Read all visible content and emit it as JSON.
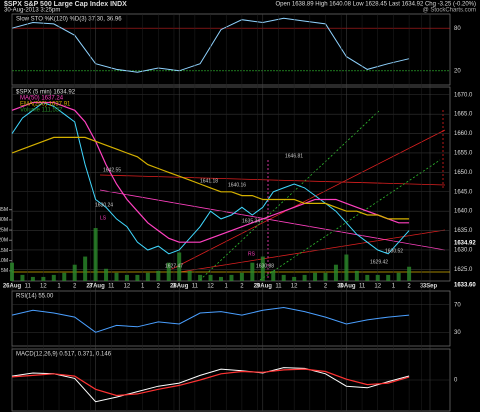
{
  "header": {
    "symbol": "$SPX S&P 500 Large Cap Index INDX",
    "timestamp": "30-Aug-2013 3:25pm",
    "quote": "Open 1638.89 High 1640.08 Low 1628.45 Last 1634.92 Chg -3.25 (-0.20%)",
    "source": "@ StockCharts.com"
  },
  "chart_data": [
    {
      "type": "line",
      "title": "Slow STO %K(120) %D(3) 37.30, 36.96",
      "x": [
        0,
        2,
        4,
        6,
        8,
        10,
        12,
        14,
        16,
        18,
        20,
        22,
        24,
        26,
        28,
        30,
        32,
        34,
        36,
        38
      ],
      "xlim": [
        0,
        40
      ],
      "ylim": [
        0,
        100
      ],
      "yticks": [
        20,
        80
      ],
      "grid": true,
      "series": [
        {
          "name": "%K",
          "color": "#8fd3ff",
          "values": [
            80,
            88,
            86,
            70,
            30,
            22,
            18,
            24,
            20,
            30,
            78,
            92,
            88,
            94,
            90,
            86,
            40,
            22,
            30,
            37
          ]
        }
      ]
    },
    {
      "type": "line",
      "title": "$SPX (5 min) 1634.92",
      "x": [
        0,
        1,
        2,
        3,
        4,
        5,
        6,
        7,
        8,
        9,
        10,
        11,
        12,
        13,
        14,
        15,
        16,
        17,
        18,
        19,
        20,
        21,
        22,
        23,
        24,
        25,
        26,
        27,
        28,
        29,
        30,
        31,
        32,
        33,
        34,
        35,
        36,
        37,
        38
      ],
      "xlim": [
        0,
        40
      ],
      "ylim": [
        1622,
        1672
      ],
      "yticks": [
        {
          "value": 1670,
          "label": "1670.0"
        },
        {
          "value": 1665,
          "label": "1665.0"
        },
        {
          "value": 1660,
          "label": "1660.0"
        },
        {
          "value": 1655,
          "label": "1655.0"
        },
        {
          "value": 1650,
          "label": "1650.0"
        },
        {
          "value": 1645,
          "label": "1645.0"
        },
        {
          "value": 1640,
          "label": "1640.0"
        },
        {
          "value": 1635,
          "label": "1635.0"
        },
        {
          "value": 1630,
          "label": "1630.0"
        },
        {
          "value": 1625,
          "label": "1625.0"
        }
      ],
      "xticks": [
        {
          "value": 0,
          "label": "26Aug"
        },
        {
          "value": 1.5,
          "label": "11"
        },
        {
          "value": 3,
          "label": "12"
        },
        {
          "value": 4.5,
          "label": "1"
        },
        {
          "value": 6,
          "label": "2"
        },
        {
          "value": 7.5,
          "label": "3"
        },
        {
          "value": 8,
          "label": "27Aug"
        },
        {
          "value": 9.5,
          "label": "11"
        },
        {
          "value": 11,
          "label": "12"
        },
        {
          "value": 12.5,
          "label": "1"
        },
        {
          "value": 14,
          "label": "2"
        },
        {
          "value": 15.5,
          "label": "3"
        },
        {
          "value": 16,
          "label": "28Aug"
        },
        {
          "value": 17.5,
          "label": "11"
        },
        {
          "value": 19,
          "label": "12"
        },
        {
          "value": 20.5,
          "label": "1"
        },
        {
          "value": 22,
          "label": "2"
        },
        {
          "value": 23.5,
          "label": "3"
        },
        {
          "value": 24,
          "label": "29Aug"
        },
        {
          "value": 25.5,
          "label": "11"
        },
        {
          "value": 27,
          "label": "12"
        },
        {
          "value": 28.5,
          "label": "1"
        },
        {
          "value": 30,
          "label": "2"
        },
        {
          "value": 31.5,
          "label": "3"
        },
        {
          "value": 32,
          "label": "30Aug"
        },
        {
          "value": 33.5,
          "label": "11"
        },
        {
          "value": 35,
          "label": "12"
        },
        {
          "value": 36.5,
          "label": "1"
        },
        {
          "value": 38,
          "label": "2"
        },
        {
          "value": 39.2,
          "label": "3"
        },
        {
          "value": 40,
          "label": "3Sep"
        }
      ],
      "grid": true,
      "series": [
        {
          "name": "$SPX (5 min) 1634.92",
          "color": "#40d8ff",
          "values": [
            1660,
            1664,
            1666,
            1668,
            1667,
            1665,
            1663,
            1652,
            1643,
            1641,
            1638,
            1636,
            1632,
            1630,
            1631,
            1629,
            1630,
            1633,
            1636,
            1640,
            1638,
            1639,
            1641,
            1639,
            1641,
            1645,
            1646,
            1647,
            1646,
            1644,
            1642,
            1640,
            1637,
            1634,
            1632,
            1630,
            1629,
            1632,
            1635
          ]
        },
        {
          "name": "MA(50) 1637.24",
          "color": "#ff40c0",
          "values": [
            1666,
            1667,
            1668,
            1668,
            1668,
            1667,
            1666,
            1663,
            1658,
            1652,
            1647,
            1643,
            1640,
            1637,
            1635,
            1633,
            1632,
            1632,
            1632,
            1633,
            1634,
            1635,
            1636,
            1637,
            1638,
            1639,
            1640,
            1641,
            1642,
            1643,
            1643,
            1643,
            1642,
            1641,
            1640,
            1639,
            1638,
            1637,
            1637
          ]
        },
        {
          "name": "EMA(200) 1637.91",
          "color": "#d4b000",
          "values": [
            1655,
            1656,
            1657,
            1658,
            1659,
            1659,
            1659,
            1659,
            1658,
            1657,
            1656,
            1655,
            1654,
            1652,
            1651,
            1650,
            1649,
            1648,
            1647,
            1646,
            1645,
            1645,
            1644,
            1644,
            1643,
            1643,
            1643,
            1643,
            1642,
            1642,
            1642,
            1641,
            1640,
            1640,
            1639,
            1639,
            1638,
            1638,
            1638
          ]
        }
      ],
      "volume": {
        "name": "Volume 111,537",
        "color": "#2a8a2a",
        "ylim": [
          0,
          40000000
        ],
        "yticks": [
          {
            "value": 35000000,
            "label": "35M"
          },
          {
            "value": 30000000,
            "label": "30M"
          },
          {
            "value": 25000000,
            "label": "25M"
          },
          {
            "value": 20000000,
            "label": "20M"
          },
          {
            "value": 15000000,
            "label": "15M"
          },
          {
            "value": 10000000,
            "label": "10M"
          },
          {
            "value": 5000000,
            "label": "5M"
          }
        ],
        "values": [
          9000000,
          3000000,
          2000000,
          2000000,
          3000000,
          4000000,
          8000000,
          12000000,
          26000000,
          6000000,
          4000000,
          3000000,
          3000000,
          4000000,
          5000000,
          9000000,
          14000000,
          5000000,
          3000000,
          3000000,
          2000000,
          3000000,
          4000000,
          9000000,
          12000000,
          5000000,
          3000000,
          2000000,
          3000000,
          4000000,
          4000000,
          8000000,
          13000000,
          5000000,
          3000000,
          3000000,
          3000000,
          4000000,
          7000000
        ]
      },
      "annotations": [
        "1642.55",
        "1630.24",
        "LS",
        "1627.47",
        "1641.18",
        "1640.16",
        "1635.34",
        "RS",
        "1630.88",
        "1646.81",
        "1629.42",
        "1630.52"
      ],
      "last_labels": [
        "1634.92",
        "1633.60"
      ]
    },
    {
      "type": "line",
      "title": "RSI(14) 55.00",
      "x": [
        0,
        2,
        4,
        6,
        8,
        10,
        12,
        14,
        16,
        18,
        20,
        22,
        24,
        26,
        28,
        30,
        32,
        34,
        36,
        38
      ],
      "xlim": [
        0,
        40
      ],
      "ylim": [
        10,
        90
      ],
      "yticks": [
        30,
        70
      ],
      "grid": true,
      "series": [
        {
          "name": "RSI",
          "color": "#4a9fff",
          "values": [
            55,
            62,
            58,
            52,
            30,
            40,
            38,
            45,
            42,
            58,
            60,
            55,
            62,
            66,
            60,
            52,
            42,
            48,
            52,
            55
          ]
        }
      ]
    },
    {
      "type": "line",
      "title": "MACD(12,26,9) 0.517, 0.371, 0.146",
      "x": [
        0,
        2,
        4,
        6,
        8,
        10,
        12,
        14,
        16,
        18,
        20,
        22,
        24,
        26,
        28,
        30,
        32,
        34,
        36,
        38
      ],
      "xlim": [
        0,
        40
      ],
      "ylim": [
        -4,
        4
      ],
      "yticks": [
        0
      ],
      "grid": true,
      "series": [
        {
          "name": "MACD",
          "color": "#ffffff",
          "values": [
            0.5,
            0.9,
            0.8,
            0.2,
            -2.8,
            -2.2,
            -1.5,
            -0.8,
            -0.4,
            0.6,
            1.4,
            1.2,
            0.9,
            1.6,
            1.5,
            0.8,
            -0.8,
            -1.0,
            -0.2,
            0.517
          ]
        },
        {
          "name": "Signal",
          "color": "#ff3333",
          "values": [
            0.4,
            0.6,
            0.8,
            0.5,
            -1.2,
            -2.0,
            -1.8,
            -1.2,
            -0.7,
            0.0,
            0.8,
            1.1,
            1.0,
            1.3,
            1.4,
            1.1,
            0.1,
            -0.6,
            -0.4,
            0.371
          ]
        }
      ]
    }
  ]
}
